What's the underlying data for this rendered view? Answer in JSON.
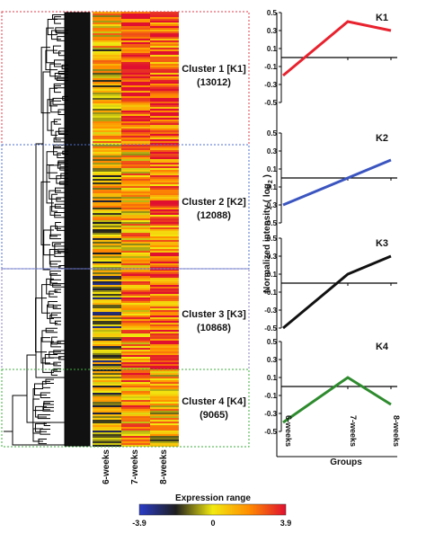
{
  "figure": {
    "heatmap_columns": [
      "6-weeks",
      "7-weeks",
      "8-weeks"
    ],
    "clusters": [
      {
        "label": "Cluster 1 [K1]",
        "count": "(13012)",
        "box_color": "#e23b4a"
      },
      {
        "label": "Cluster 2 [K2]",
        "count": "(12088)",
        "box_color": "#4d6fd1"
      },
      {
        "label": "Cluster 3 [K3]",
        "count": "(10868)",
        "box_color": "#8a7fbf"
      },
      {
        "label": "Cluster 4 [K4]",
        "count": "(9065)",
        "box_color": "#3fae3f"
      }
    ],
    "colorbar": {
      "title": "Expression range",
      "min_label": "-3.9",
      "mid_label": "0",
      "max_label": "3.9",
      "colors": [
        "#2a3cc8",
        "#1e1e1e",
        "#f2ea10",
        "#ff8c00",
        "#e01030"
      ]
    },
    "ylabel_main": "Normalized intensity ( log",
    "ylabel_sub": "2",
    "ylabel_end": " )",
    "xlabel": "Groups"
  },
  "chart_data": {
    "type": "line",
    "categories": [
      "6-weeks",
      "7-weeks",
      "8-weeks"
    ],
    "ylim": [
      -0.5,
      0.5
    ],
    "yticks": [
      "0.5",
      "0.3",
      "0.1",
      "-0.1",
      "-0.3",
      "-0.5"
    ],
    "reference_line": 0,
    "panels": [
      {
        "title": "K1",
        "color": "#e8222e",
        "values": [
          -0.2,
          0.4,
          0.3
        ]
      },
      {
        "title": "K2",
        "color": "#3b55c0",
        "values": [
          -0.3,
          0.0,
          0.2
        ]
      },
      {
        "title": "K3",
        "color": "#111111",
        "values": [
          -0.5,
          0.1,
          0.3
        ]
      },
      {
        "title": "K4",
        "color": "#2e8b2e",
        "values": [
          -0.4,
          0.1,
          -0.2
        ]
      }
    ]
  }
}
